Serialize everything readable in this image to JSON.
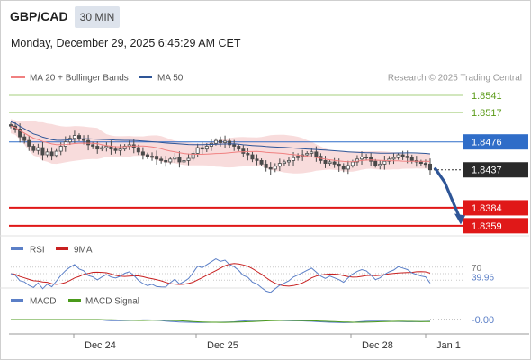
{
  "header": {
    "pair": "GBP/CAD",
    "timeframe": "30 MIN",
    "timestamp": "Monday, December 29, 2025 6:45:29 AM CET"
  },
  "main_legend": {
    "ma20_label": "MA 20 + Bollinger Bands",
    "ma50_label": "MA 50",
    "credit": "Research © 2025 Trading Central"
  },
  "rsi_legend": {
    "rsi_label": "RSI",
    "ma_label": "9MA"
  },
  "macd_legend": {
    "macd_label": "MACD",
    "signal_label": "MACD Signal"
  },
  "colors": {
    "resistance": "#5a9a17",
    "pivot": "#2f6dc8",
    "support": "#e01818",
    "price_tag": "#2a2a2a",
    "ma20": "#f08080",
    "ma50": "#2e5597",
    "band_fill": "#f8dcdc",
    "candle": "#4a4a4a",
    "rsi": "#5b7fc7",
    "rsi_ma": "#c82020",
    "macd": "#5b7fc7",
    "macd_signal": "#4a9a1a",
    "arrow": "#2e5597"
  },
  "chart_data": [
    {
      "type": "candlestick",
      "title": "GBP/CAD",
      "x_ticks": [
        "Dec 24",
        "Dec 25",
        "Dec 28",
        "Jan 1"
      ],
      "current_price": 1.8437,
      "levels": [
        {
          "value": 1.8541,
          "role": "resistance"
        },
        {
          "value": 1.8517,
          "role": "resistance"
        },
        {
          "value": 1.8476,
          "role": "pivot"
        },
        {
          "value": 1.8384,
          "role": "support"
        },
        {
          "value": 1.8359,
          "role": "support"
        }
      ],
      "close_series": [
        1.8498,
        1.8494,
        1.8483,
        1.8478,
        1.847,
        1.8464,
        1.8468,
        1.8458,
        1.8462,
        1.8457,
        1.8463,
        1.847,
        1.8476,
        1.8481,
        1.8485,
        1.848,
        1.8478,
        1.8472,
        1.847,
        1.8466,
        1.8468,
        1.847,
        1.8466,
        1.8464,
        1.8466,
        1.847,
        1.8472,
        1.8468,
        1.8462,
        1.8458,
        1.8455,
        1.8456,
        1.8452,
        1.845,
        1.8448,
        1.8452,
        1.8455,
        1.8448,
        1.845,
        1.8453,
        1.846,
        1.8468,
        1.8466,
        1.847,
        1.8474,
        1.8478,
        1.8475,
        1.8477,
        1.8472,
        1.847,
        1.8466,
        1.846,
        1.8458,
        1.8452,
        1.845,
        1.8445,
        1.844,
        1.8438,
        1.8442,
        1.8446,
        1.8448,
        1.845,
        1.8454,
        1.8456,
        1.8458,
        1.846,
        1.8462,
        1.8456,
        1.845,
        1.8446,
        1.8448,
        1.8445,
        1.8442,
        1.8438,
        1.8443,
        1.8448,
        1.8452,
        1.8455,
        1.8454,
        1.8449,
        1.8443,
        1.8445,
        1.8449,
        1.8452,
        1.8454,
        1.8458,
        1.8456,
        1.8454,
        1.845,
        1.8448,
        1.8446,
        1.8445,
        1.8437
      ],
      "trend_arrow": {
        "from": 1.844,
        "to": 1.8362
      }
    },
    {
      "type": "line",
      "title": "RSI",
      "series": [
        {
          "name": "RSI",
          "last": 39.96
        },
        {
          "name": "9MA"
        }
      ],
      "reference_level": 70,
      "ylim": [
        0,
        100
      ]
    },
    {
      "type": "line",
      "title": "MACD",
      "series": [
        {
          "name": "MACD"
        },
        {
          "name": "MACD Signal"
        }
      ],
      "last_value": "-0.00"
    }
  ]
}
